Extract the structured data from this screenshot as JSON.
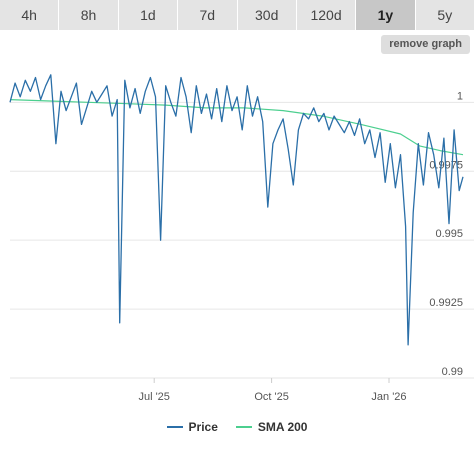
{
  "tabs": [
    {
      "label": "4h"
    },
    {
      "label": "8h"
    },
    {
      "label": "1d"
    },
    {
      "label": "7d"
    },
    {
      "label": "30d"
    },
    {
      "label": "120d"
    },
    {
      "label": "1y",
      "active": true
    },
    {
      "label": "5y"
    }
  ],
  "remove_button": {
    "label": "remove graph"
  },
  "colors": {
    "price": "#2b6fa8",
    "sma": "#4ccf8f",
    "grid": "#e6e6e6",
    "axis_text": "#555555"
  },
  "chart_data": {
    "type": "line",
    "title": "",
    "xlabel": "",
    "ylabel": "",
    "ylim": [
      0.99,
      1.0015
    ],
    "y_ticks": [
      1,
      0.9975,
      0.995,
      0.9925,
      0.99
    ],
    "y_tick_labels": [
      "1",
      "0.9975",
      "0.995",
      "0.9925",
      "0.99"
    ],
    "x_ticks": [
      {
        "date": "2025-07-01",
        "label": "Jul '25"
      },
      {
        "date": "2025-10-01",
        "label": "Oct '25"
      },
      {
        "date": "2026-01-01",
        "label": "Jan '26"
      }
    ],
    "x_range": [
      "2025-03-10",
      "2026-02-28"
    ],
    "grid": "horizontal",
    "legend": "bottom-center",
    "series": [
      {
        "name": "Price",
        "x": [
          "2025-03-10",
          "2025-03-14",
          "2025-03-18",
          "2025-03-22",
          "2025-03-26",
          "2025-03-30",
          "2025-04-03",
          "2025-04-07",
          "2025-04-11",
          "2025-04-15",
          "2025-04-19",
          "2025-04-23",
          "2025-04-27",
          "2025-05-01",
          "2025-05-05",
          "2025-05-09",
          "2025-05-13",
          "2025-05-17",
          "2025-05-21",
          "2025-05-25",
          "2025-05-29",
          "2025-06-02",
          "2025-06-04",
          "2025-06-08",
          "2025-06-12",
          "2025-06-16",
          "2025-06-20",
          "2025-06-24",
          "2025-06-28",
          "2025-07-02",
          "2025-07-06",
          "2025-07-10",
          "2025-07-14",
          "2025-07-18",
          "2025-07-22",
          "2025-07-26",
          "2025-07-30",
          "2025-08-03",
          "2025-08-07",
          "2025-08-11",
          "2025-08-15",
          "2025-08-19",
          "2025-08-23",
          "2025-08-27",
          "2025-08-31",
          "2025-09-04",
          "2025-09-08",
          "2025-09-12",
          "2025-09-16",
          "2025-09-20",
          "2025-09-24",
          "2025-09-28",
          "2025-10-02",
          "2025-10-06",
          "2025-10-10",
          "2025-10-14",
          "2025-10-18",
          "2025-10-22",
          "2025-10-26",
          "2025-10-30",
          "2025-11-03",
          "2025-11-07",
          "2025-11-11",
          "2025-11-15",
          "2025-11-19",
          "2025-11-23",
          "2025-11-27",
          "2025-12-01",
          "2025-12-05",
          "2025-12-09",
          "2025-12-13",
          "2025-12-17",
          "2025-12-21",
          "2025-12-25",
          "2025-12-29",
          "2026-01-02",
          "2026-01-06",
          "2026-01-10",
          "2026-01-14",
          "2026-01-16",
          "2026-01-20",
          "2026-01-24",
          "2026-01-28",
          "2026-02-01",
          "2026-02-05",
          "2026-02-09",
          "2026-02-13",
          "2026-02-17",
          "2026-02-21",
          "2026-02-25",
          "2026-02-28"
        ],
        "values": [
          1.0,
          1.0007,
          1.0002,
          1.0008,
          1.0004,
          1.0009,
          1.0001,
          1.0006,
          1.001,
          0.9985,
          1.0004,
          0.9997,
          1.0002,
          1.0007,
          0.9992,
          0.9998,
          1.0004,
          1.0,
          1.0003,
          1.0006,
          0.9995,
          1.0001,
          0.992,
          1.0008,
          0.9998,
          1.0005,
          0.9996,
          1.0004,
          1.0009,
          1.0002,
          0.995,
          1.0006,
          1.0,
          0.9995,
          1.0009,
          1.0002,
          0.9989,
          1.0006,
          0.9996,
          1.0003,
          0.9994,
          1.0005,
          0.9993,
          1.0006,
          0.9997,
          1.0002,
          0.999,
          1.0006,
          0.9995,
          1.0002,
          0.9993,
          0.9962,
          0.9985,
          0.999,
          0.9994,
          0.9983,
          0.997,
          0.999,
          0.9996,
          0.9994,
          0.9998,
          0.9993,
          0.9996,
          0.999,
          0.9995,
          0.9992,
          0.9989,
          0.9993,
          0.9988,
          0.9994,
          0.9985,
          0.999,
          0.998,
          0.9989,
          0.9971,
          0.9985,
          0.9969,
          0.9981,
          0.9955,
          0.9912,
          0.996,
          0.9985,
          0.997,
          0.9989,
          0.9981,
          0.9969,
          0.9987,
          0.9956,
          0.999,
          0.9968,
          0.9973
        ]
      },
      {
        "name": "SMA 200",
        "x": [
          "2025-03-10",
          "2025-04-10",
          "2025-05-10",
          "2025-06-10",
          "2025-07-10",
          "2025-08-10",
          "2025-09-10",
          "2025-10-10",
          "2025-11-10",
          "2025-12-10",
          "2026-01-10",
          "2026-01-25",
          "2026-02-10",
          "2026-02-28"
        ],
        "values": [
          1.0001,
          1.00005,
          1.0,
          0.99995,
          0.9999,
          0.9998,
          0.9998,
          0.9997,
          0.9995,
          0.9992,
          0.99885,
          0.99842,
          0.99825,
          0.9981
        ]
      }
    ]
  }
}
